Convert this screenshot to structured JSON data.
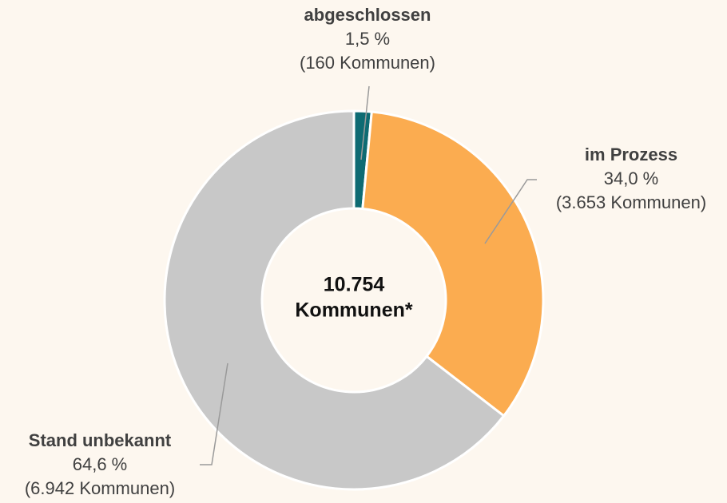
{
  "chart_data": {
    "type": "donut",
    "categories": [
      "abgeschlossen",
      "im Prozess",
      "Stand unbekannt"
    ],
    "values": [
      1.5,
      34.0,
      64.6
    ],
    "value_labels": [
      "1,5 %",
      "34,0 %",
      "64,6 %"
    ],
    "counts": [
      160,
      3653,
      6942
    ],
    "count_labels": [
      "(160 Kommunen)",
      "(3.653 Kommunen)",
      "(6.942 Kommunen)"
    ],
    "colors": [
      "#0e6b73",
      "#fbac50",
      "#c8c8c8"
    ],
    "center_label": [
      "10.754",
      "Kommunen*"
    ]
  }
}
